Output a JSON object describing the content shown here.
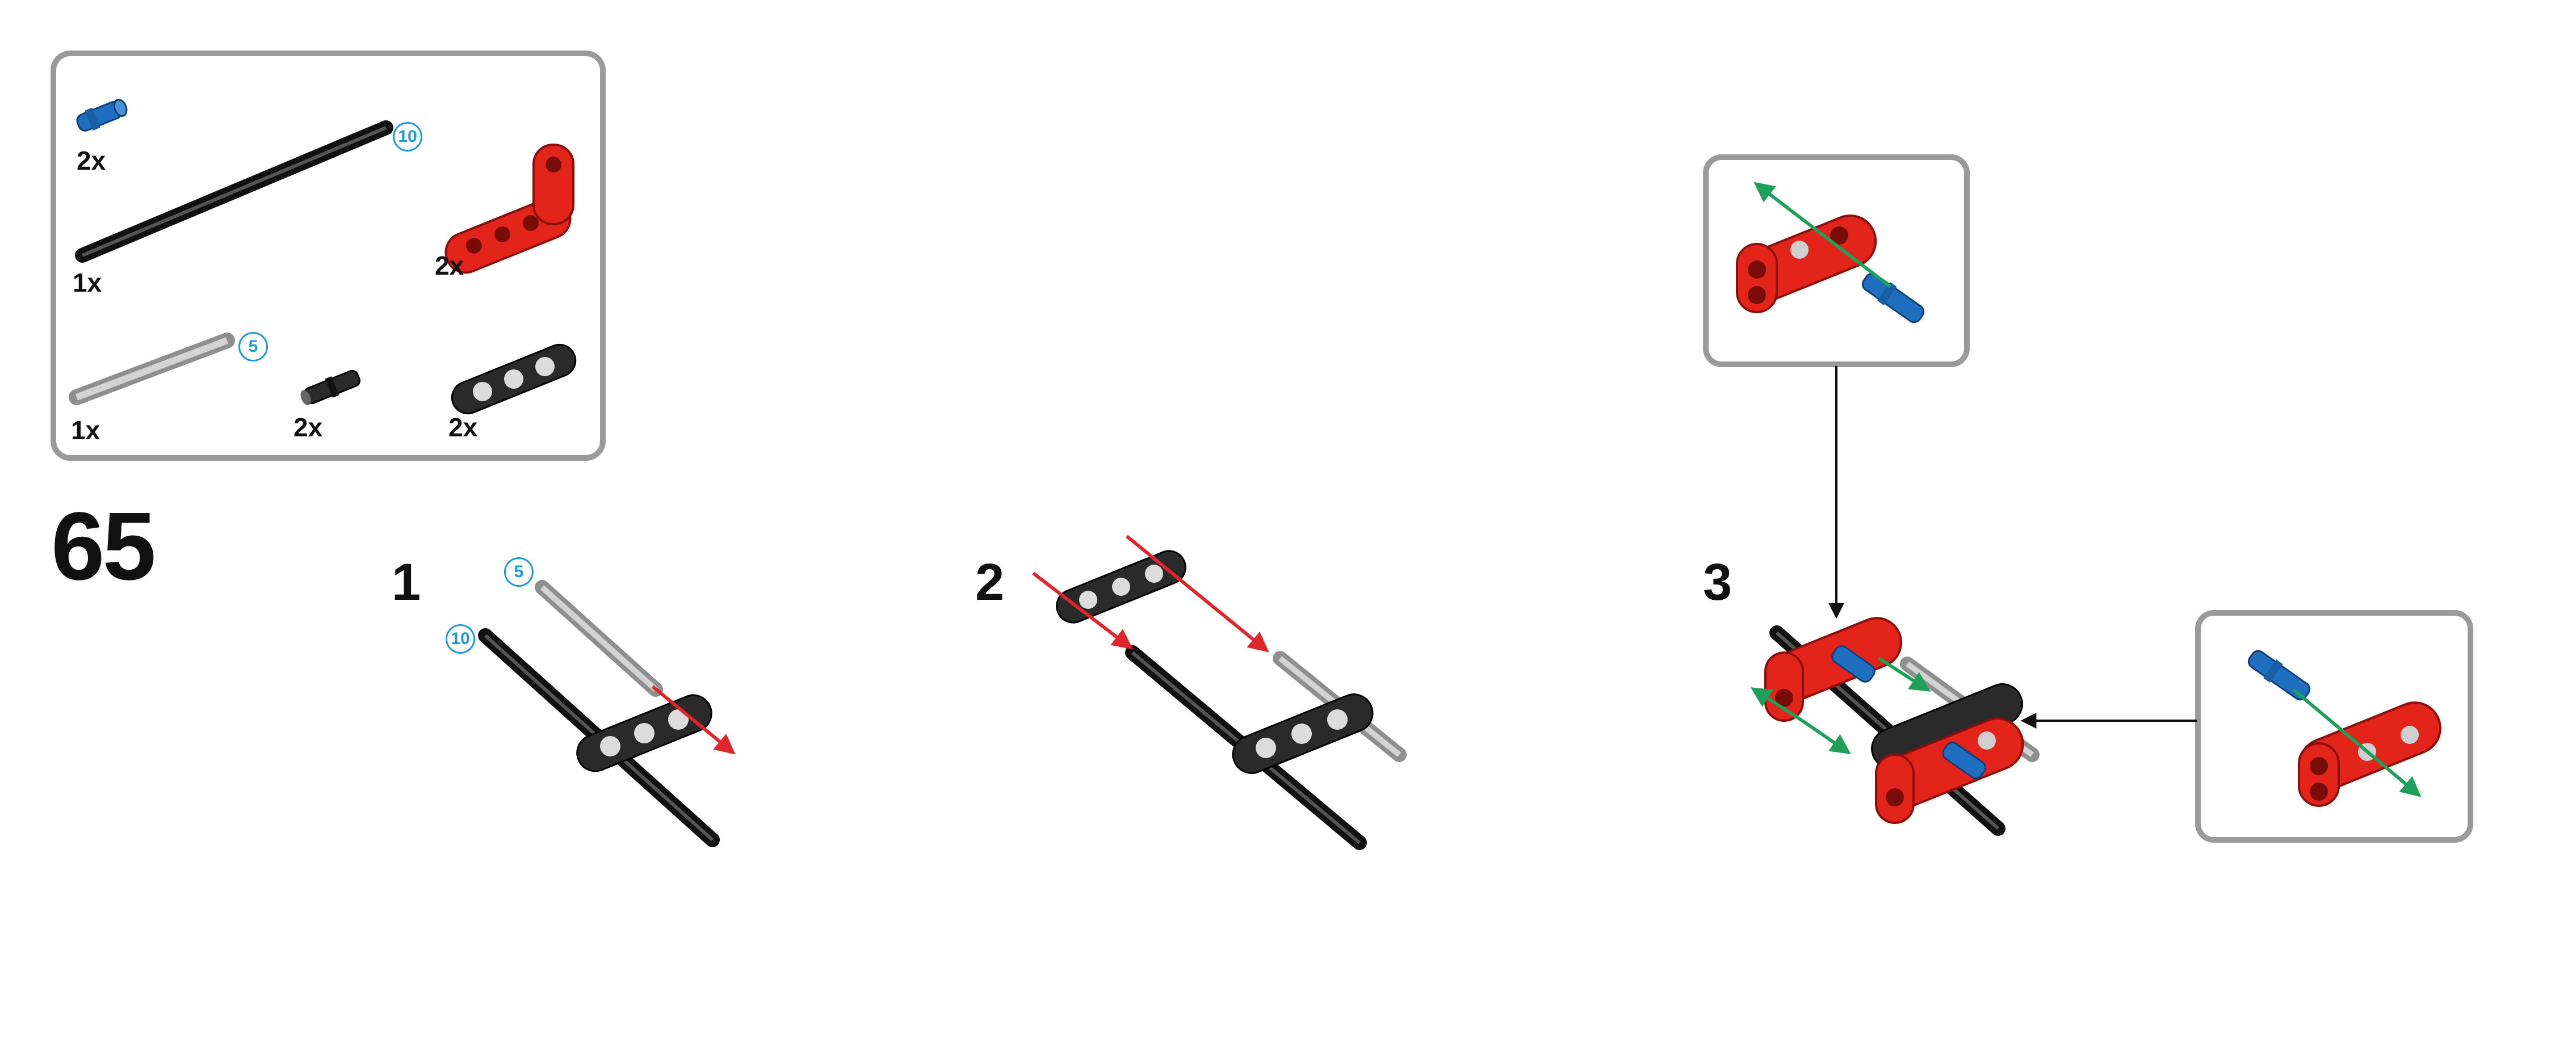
{
  "page_number": "65",
  "parts_list": [
    {
      "name": "blue-axle-pin",
      "quantity": "2x"
    },
    {
      "name": "black-axle",
      "quantity": "1x",
      "length": "10"
    },
    {
      "name": "red-angled-beam",
      "quantity": "2x"
    },
    {
      "name": "grey-axle",
      "quantity": "1x",
      "length": "5"
    },
    {
      "name": "black-connector-peg",
      "quantity": "2x"
    },
    {
      "name": "black-thin-beam",
      "quantity": "2x"
    }
  ],
  "steps": [
    {
      "number": "1",
      "callouts": [
        "5",
        "10"
      ]
    },
    {
      "number": "2"
    },
    {
      "number": "3"
    }
  ],
  "colors": {
    "frame": "#9a9a9a",
    "red_part": "#e3241b",
    "blue_part": "#1f6fc0",
    "black_part": "#2a2a2a",
    "grey_part": "#b9b9b9",
    "red_arrow": "#e0252b",
    "green_arrow": "#1fa05a",
    "callout": "#1a9ad6"
  }
}
